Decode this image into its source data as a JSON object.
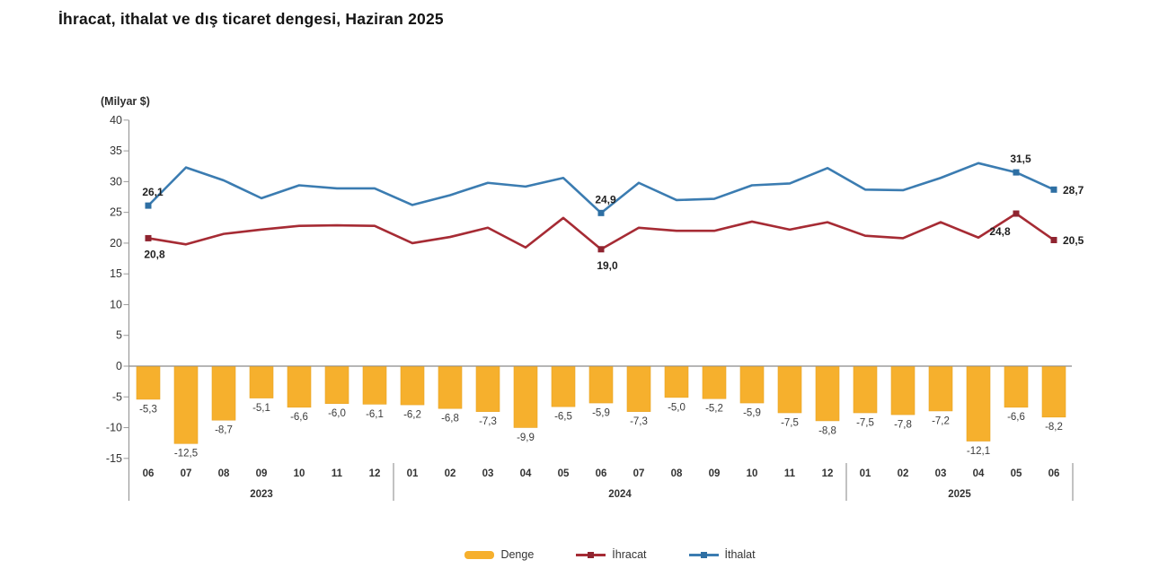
{
  "title": "İhracat, ithalat ve dış ticaret dengesi, Haziran 2025",
  "y_axis_title": "(Milyar $)",
  "legend": {
    "items": [
      {
        "id": "denge",
        "label": "Denge",
        "type": "bar",
        "color": "#F6B02D",
        "marker_color": "#F6B02D"
      },
      {
        "id": "ihracat",
        "label": "İhracat",
        "type": "line",
        "color": "#A62B34",
        "marker_color": "#8F2430"
      },
      {
        "id": "ithalat",
        "label": "İthalat",
        "type": "line",
        "color": "#3B7CB1",
        "marker_color": "#2E6FA3"
      }
    ]
  },
  "chart_data": {
    "type": "bar+line combo",
    "title": "İhracat, ithalat ve dış ticaret dengesi, Haziran 2025",
    "ylabel": "(Milyar $)",
    "ylim": [
      -15,
      40
    ],
    "ytick_step": 5,
    "grid": "off",
    "legend_position": "bottom-center",
    "x_months": [
      "06",
      "07",
      "08",
      "09",
      "10",
      "11",
      "12",
      "01",
      "02",
      "03",
      "04",
      "05",
      "06",
      "07",
      "08",
      "09",
      "10",
      "11",
      "12",
      "01",
      "02",
      "03",
      "04",
      "05",
      "06"
    ],
    "year_groups": [
      {
        "label": "2023",
        "start": 0,
        "count": 7
      },
      {
        "label": "2024",
        "start": 7,
        "count": 12
      },
      {
        "label": "2025",
        "start": 19,
        "count": 6
      }
    ],
    "series": [
      {
        "name": "Denge",
        "type": "bar",
        "color": "#F6B02D",
        "stroke": "#E9A424",
        "values": [
          -5.3,
          -12.5,
          -8.7,
          -5.1,
          -6.6,
          -6.0,
          -6.1,
          -6.2,
          -6.8,
          -7.3,
          -9.9,
          -6.5,
          -5.9,
          -7.3,
          -5.0,
          -5.2,
          -5.9,
          -7.5,
          -8.8,
          -7.5,
          -7.8,
          -7.2,
          -12.1,
          -6.6,
          -8.2
        ],
        "value_labels": "all, below each bar, decimal comma"
      },
      {
        "name": "İhracat",
        "type": "line",
        "color": "#A62B34",
        "marker_color": "#8F2430",
        "values": [
          20.8,
          19.8,
          21.5,
          22.2,
          22.8,
          22.9,
          22.8,
          20.0,
          21.0,
          22.5,
          19.3,
          24.1,
          19.0,
          22.5,
          22.0,
          22.0,
          23.5,
          22.2,
          23.4,
          21.2,
          20.8,
          23.4,
          20.9,
          24.8,
          20.5
        ],
        "annotations": [
          {
            "i": 0,
            "text": "20,8",
            "pos": "below"
          },
          {
            "i": 12,
            "text": "19,0",
            "pos": "below"
          },
          {
            "i": 23,
            "text": "24,8",
            "pos": "below-left"
          },
          {
            "i": 24,
            "text": "20,5",
            "pos": "right"
          }
        ]
      },
      {
        "name": "İthalat",
        "type": "line",
        "color": "#3B7CB1",
        "marker_color": "#2E6FA3",
        "values": [
          26.1,
          32.3,
          30.2,
          27.3,
          29.4,
          28.9,
          28.9,
          26.2,
          27.8,
          29.8,
          29.2,
          30.6,
          24.9,
          29.8,
          27.0,
          27.2,
          29.4,
          29.7,
          32.2,
          28.7,
          28.6,
          30.6,
          33.0,
          31.5,
          28.7
        ],
        "annotations": [
          {
            "i": 0,
            "text": "26,1",
            "pos": "above"
          },
          {
            "i": 12,
            "text": "24,9",
            "pos": "above"
          },
          {
            "i": 23,
            "text": "31,5",
            "pos": "above"
          },
          {
            "i": 24,
            "text": "28,7",
            "pos": "right"
          }
        ]
      }
    ]
  }
}
